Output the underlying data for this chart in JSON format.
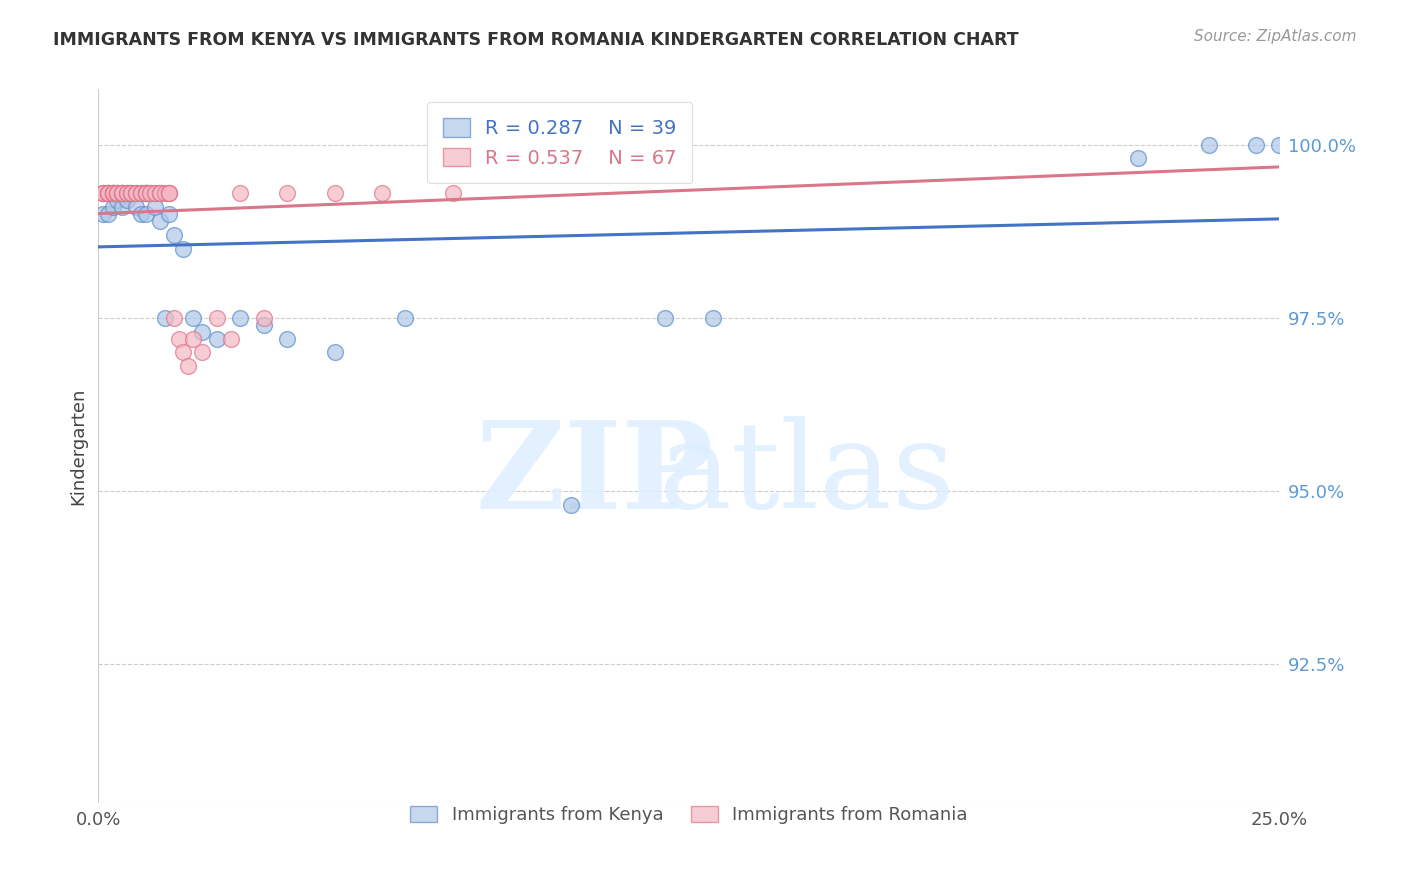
{
  "title": "IMMIGRANTS FROM KENYA VS IMMIGRANTS FROM ROMANIA KINDERGARTEN CORRELATION CHART",
  "source": "Source: ZipAtlas.com",
  "ylabel": "Kindergarten",
  "ytick_labels": [
    "100.0%",
    "97.5%",
    "95.0%",
    "92.5%"
  ],
  "ytick_values": [
    1.0,
    0.975,
    0.95,
    0.925
  ],
  "xlim": [
    0.0,
    0.25
  ],
  "ylim": [
    0.905,
    1.008
  ],
  "kenya_color": "#aec6e8",
  "kenya_edge_color": "#5b8fc9",
  "romania_color": "#f4b8c4",
  "romania_edge_color": "#e0738a",
  "kenya_R": 0.287,
  "kenya_N": 39,
  "romania_R": 0.537,
  "romania_N": 67,
  "kenya_line_color": "#4472c4",
  "romania_line_color": "#d9768a",
  "kenya_x": [
    0.001,
    0.001,
    0.002,
    0.002,
    0.003,
    0.003,
    0.004,
    0.004,
    0.005,
    0.005,
    0.006,
    0.006,
    0.007,
    0.008,
    0.009,
    0.01,
    0.01,
    0.011,
    0.012,
    0.013,
    0.014,
    0.015,
    0.016,
    0.018,
    0.02,
    0.022,
    0.025,
    0.03,
    0.035,
    0.04,
    0.05,
    0.065,
    0.1,
    0.12,
    0.13,
    0.22,
    0.235,
    0.245,
    0.25
  ],
  "kenya_y": [
    0.99,
    0.993,
    0.99,
    0.993,
    0.991,
    0.993,
    0.992,
    0.993,
    0.993,
    0.991,
    0.992,
    0.993,
    0.993,
    0.991,
    0.99,
    0.993,
    0.99,
    0.993,
    0.991,
    0.989,
    0.975,
    0.99,
    0.987,
    0.985,
    0.975,
    0.973,
    0.972,
    0.975,
    0.974,
    0.972,
    0.97,
    0.975,
    0.948,
    0.975,
    0.975,
    0.998,
    1.0,
    1.0,
    1.0
  ],
  "romania_x": [
    0.001,
    0.001,
    0.001,
    0.002,
    0.002,
    0.002,
    0.002,
    0.003,
    0.003,
    0.003,
    0.003,
    0.003,
    0.004,
    0.004,
    0.004,
    0.004,
    0.005,
    0.005,
    0.005,
    0.005,
    0.005,
    0.006,
    0.006,
    0.006,
    0.007,
    0.007,
    0.007,
    0.008,
    0.008,
    0.008,
    0.009,
    0.009,
    0.009,
    0.01,
    0.01,
    0.01,
    0.01,
    0.01,
    0.01,
    0.011,
    0.011,
    0.012,
    0.012,
    0.013,
    0.013,
    0.013,
    0.014,
    0.015,
    0.015,
    0.015,
    0.016,
    0.017,
    0.018,
    0.019,
    0.02,
    0.022,
    0.025,
    0.028,
    0.03,
    0.035,
    0.04,
    0.05,
    0.06,
    0.075,
    0.1,
    0.115,
    0.12
  ],
  "romania_y": [
    0.993,
    0.993,
    0.993,
    0.993,
    0.993,
    0.993,
    0.993,
    0.993,
    0.993,
    0.993,
    0.993,
    0.993,
    0.993,
    0.993,
    0.993,
    0.993,
    0.993,
    0.993,
    0.993,
    0.993,
    0.993,
    0.993,
    0.993,
    0.993,
    0.993,
    0.993,
    0.993,
    0.993,
    0.993,
    0.993,
    0.993,
    0.993,
    0.993,
    0.993,
    0.993,
    0.993,
    0.993,
    0.993,
    0.993,
    0.993,
    0.993,
    0.993,
    0.993,
    0.993,
    0.993,
    0.993,
    0.993,
    0.993,
    0.993,
    0.993,
    0.975,
    0.972,
    0.97,
    0.968,
    0.972,
    0.97,
    0.975,
    0.972,
    0.993,
    0.975,
    0.993,
    0.993,
    0.993,
    0.993,
    1.0,
    1.0,
    1.0
  ],
  "background_color": "#ffffff",
  "grid_color": "#cccccc"
}
